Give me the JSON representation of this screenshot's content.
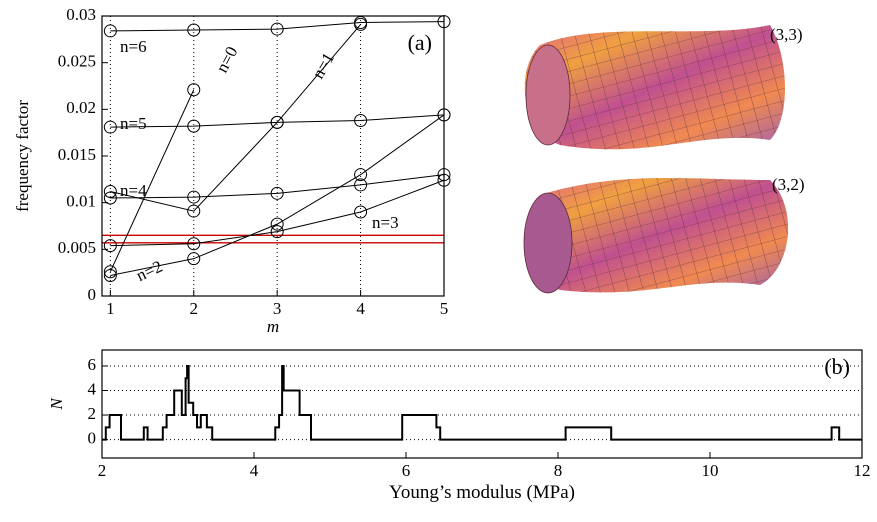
{
  "chart_data": [
    {
      "type": "line",
      "panel_label": "(a)",
      "x_label": "m",
      "y_label": "frequency factor",
      "categories": [
        1,
        2,
        3,
        4,
        5
      ],
      "xlim": [
        0.9,
        5
      ],
      "xticks": [
        1,
        2,
        3,
        4,
        5
      ],
      "ylim": [
        0,
        0.03
      ],
      "yticks": [
        0,
        0.005,
        0.01,
        0.015,
        0.02,
        0.025,
        0.03
      ],
      "grid": true,
      "marker": "circle",
      "series": [
        {
          "name": "n=0",
          "color": "#000000",
          "values": [
            0.0026,
            0.0221,
            null,
            null,
            null
          ]
        },
        {
          "name": "n=1",
          "color": "#000000",
          "values": [
            0.0112,
            0.0091,
            0.0186,
            0.0291,
            null
          ]
        },
        {
          "name": "n=2",
          "color": "#000000",
          "values": [
            0.0022,
            0.004,
            0.0077,
            0.013,
            0.0194
          ]
        },
        {
          "name": "n=3",
          "color": "#000000",
          "values": [
            0.0054,
            0.0056,
            0.0069,
            0.009,
            0.0124
          ]
        },
        {
          "name": "n=4",
          "color": "#000000",
          "values": [
            0.0105,
            0.0106,
            0.011,
            0.0119,
            0.013
          ]
        },
        {
          "name": "n=5",
          "color": "#000000",
          "values": [
            0.0181,
            0.0182,
            0.0186,
            0.0188,
            0.0194
          ]
        },
        {
          "name": "n=6",
          "color": "#000000",
          "values": [
            0.0284,
            0.0285,
            0.0286,
            0.0293,
            0.0294
          ]
        }
      ],
      "hlines": [
        {
          "value": 0.0065,
          "color": "#cc0000"
        },
        {
          "value": 0.0057,
          "color": "#cc0000"
        }
      ]
    },
    {
      "type": "step",
      "panel_label": "(b)",
      "x_label": "Young’s modulus (MPa)",
      "y_label": "N",
      "x": [
        2.0,
        2.05,
        2.1,
        2.25,
        2.55,
        2.6,
        2.8,
        2.85,
        2.95,
        3.05,
        3.1,
        3.12,
        3.14,
        3.2,
        3.25,
        3.3,
        3.38,
        3.45,
        4.28,
        4.33,
        4.37,
        4.39,
        4.6,
        4.75,
        5.95,
        6.4,
        6.45,
        8.1,
        8.7,
        11.6,
        11.7,
        12.0
      ],
      "values": [
        0,
        1,
        2,
        0,
        1,
        0,
        1,
        2,
        4,
        2,
        5,
        6,
        3,
        2,
        1,
        2,
        1,
        0,
        1,
        2,
        6,
        4,
        2,
        0,
        2,
        1,
        0,
        1,
        0,
        1,
        0,
        0
      ],
      "color": "#000000",
      "xlim": [
        2,
        12
      ],
      "xticks": [
        2,
        4,
        6,
        8,
        10,
        12
      ],
      "ylim": [
        -1.5,
        7.3
      ],
      "yticks": [
        0,
        2,
        4,
        6
      ],
      "grid": true
    }
  ],
  "images": [
    {
      "label": "(3,3)"
    },
    {
      "label": "(3,2)"
    }
  ]
}
